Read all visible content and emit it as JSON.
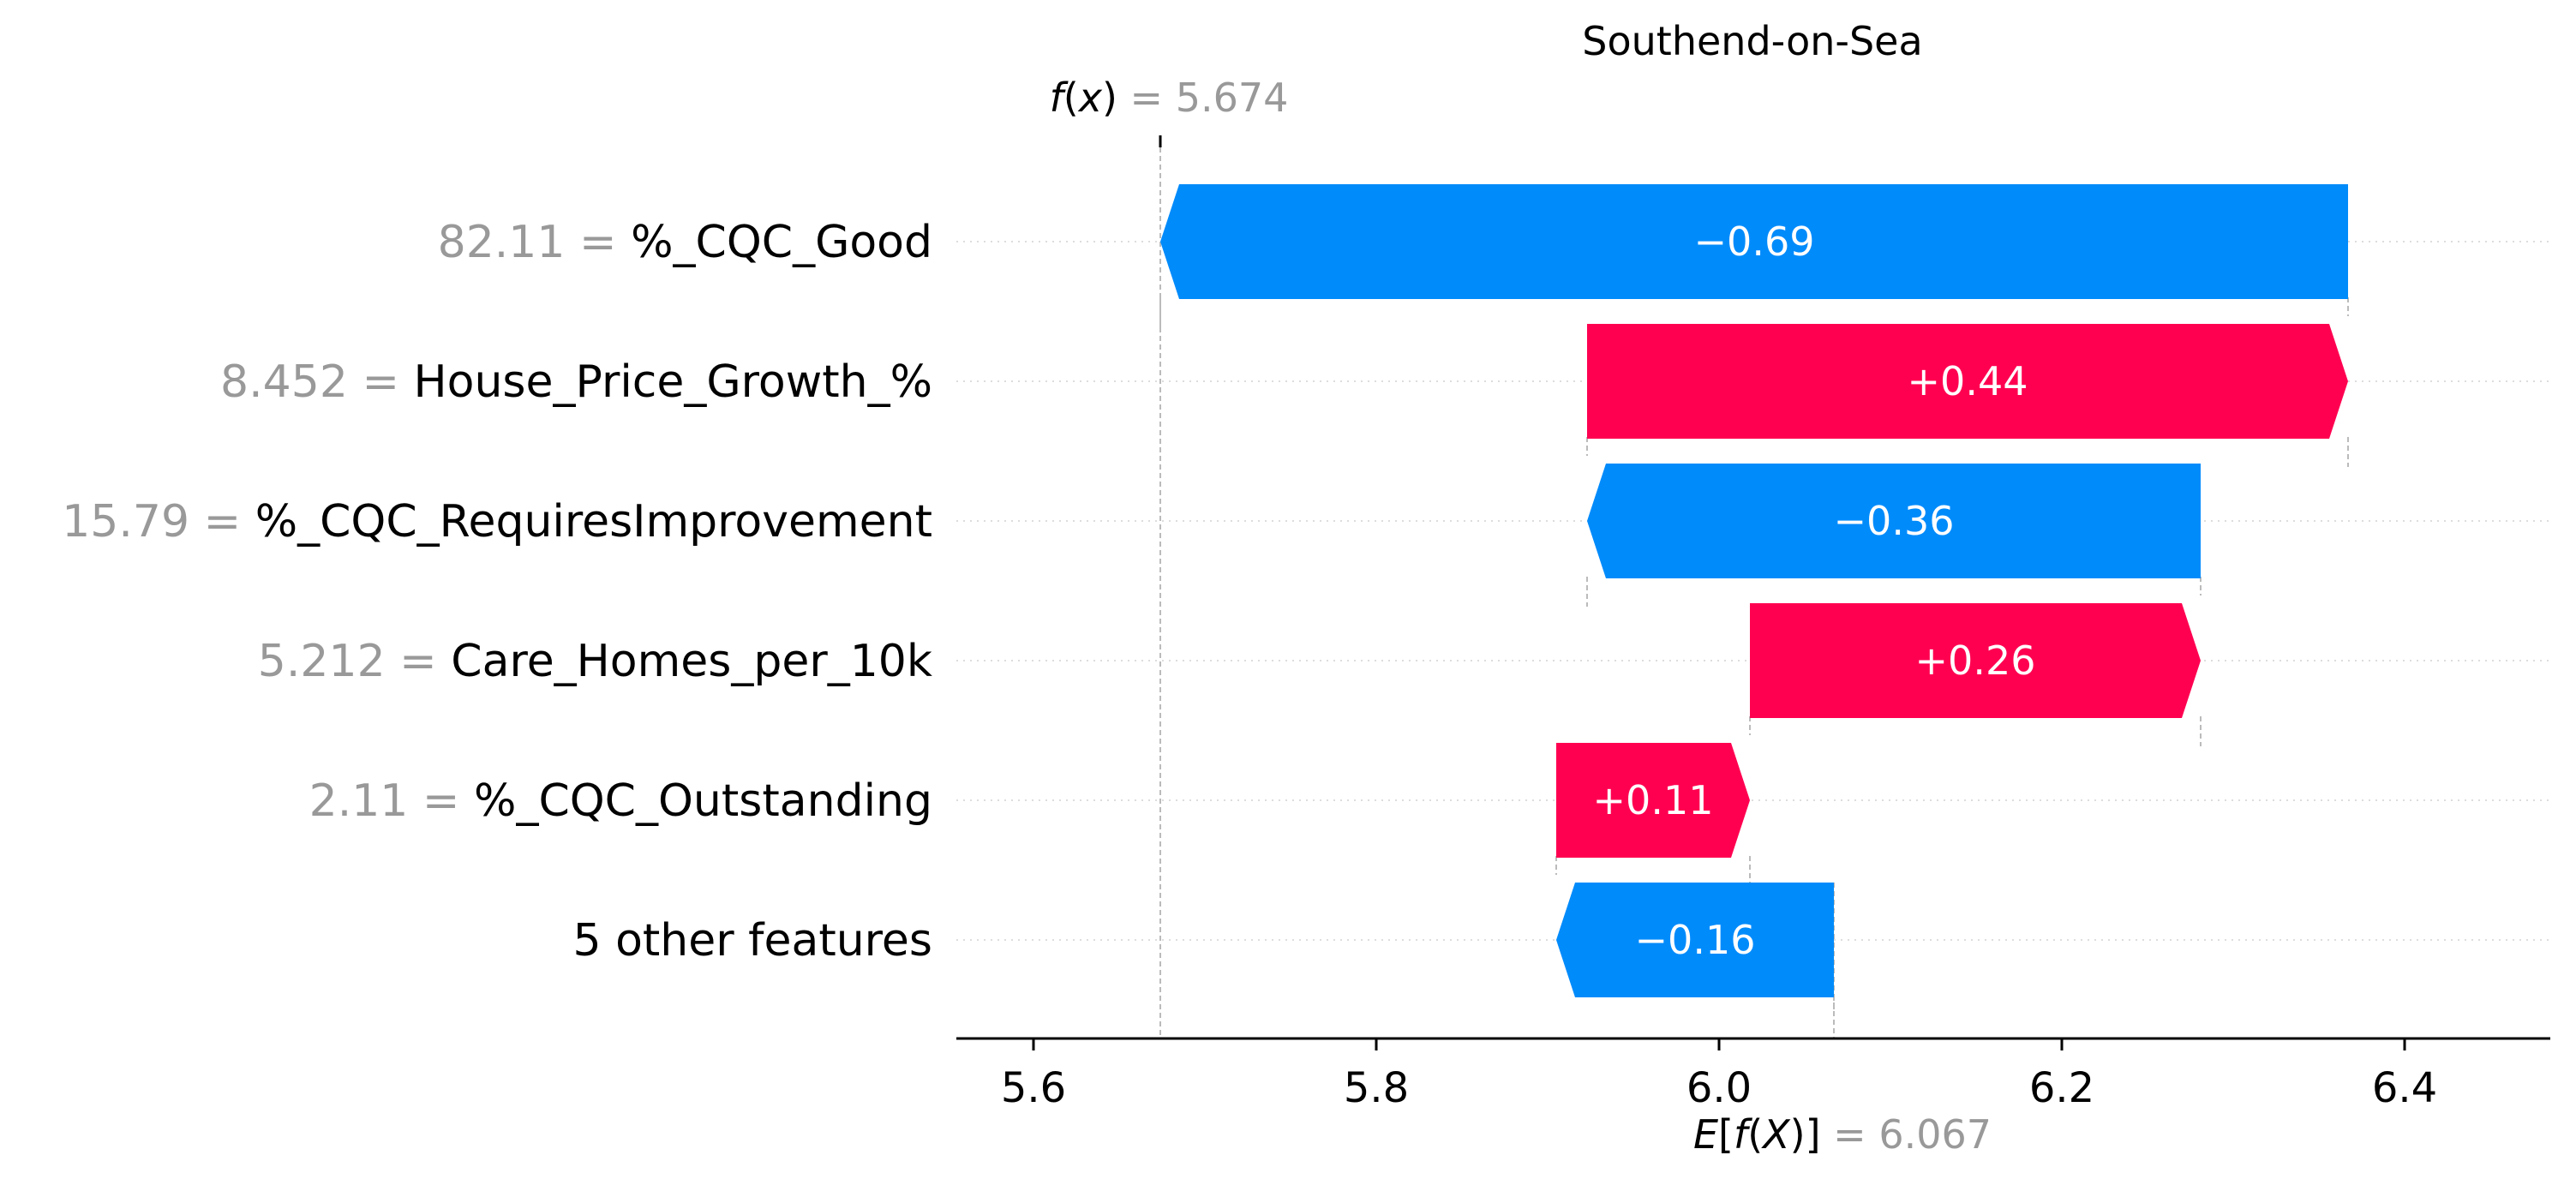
{
  "chart_data": {
    "type": "bar",
    "subtype": "shap-waterfall",
    "title": "Southend-on-Sea",
    "fx_label": {
      "fn": "f",
      "arg": "x",
      "eq": " = 5.674"
    },
    "ex_label": {
      "fn": "E",
      "inner_fn": "f",
      "arg": "X",
      "eq": " = 6.067"
    },
    "fx_value": 5.674,
    "base_value": 6.067,
    "xlim": [
      5.555,
      6.485
    ],
    "xticks": [
      5.6,
      5.8,
      6.0,
      6.2,
      6.4
    ],
    "xtick_labels": [
      "5.6",
      "5.8",
      "6.0",
      "6.2",
      "6.4"
    ],
    "rows": [
      {
        "value_text": "82.11",
        "sep": " = ",
        "feature": "%_CQC_Good",
        "contribution": -0.69,
        "label": "−0.69",
        "start": 6.367,
        "end": 5.674
      },
      {
        "value_text": "8.452",
        "sep": " = ",
        "feature": "House_Price_Growth_%",
        "contribution": 0.44,
        "label": "+0.44",
        "start": 5.923,
        "end": 6.367
      },
      {
        "value_text": "15.79",
        "sep": " = ",
        "feature": "%_CQC_RequiresImprovement",
        "contribution": -0.36,
        "label": "−0.36",
        "start": 6.281,
        "end": 5.923
      },
      {
        "value_text": "5.212",
        "sep": " = ",
        "feature": "Care_Homes_per_10k",
        "contribution": 0.26,
        "label": "+0.26",
        "start": 6.018,
        "end": 6.281
      },
      {
        "value_text": "2.11",
        "sep": " = ",
        "feature": "%_CQC_Outstanding",
        "contribution": 0.11,
        "label": "+0.11",
        "start": 5.905,
        "end": 6.018
      },
      {
        "value_text": "",
        "sep": "",
        "feature": "5 other features",
        "contribution": -0.16,
        "label": "−0.16",
        "start": 6.067,
        "end": 5.905
      }
    ],
    "colors": {
      "positive": "#ff0051",
      "negative": "#008bfb",
      "dim_text": "#999999",
      "grid": "#dddddd",
      "connector": "#bbbbbb"
    },
    "grid": true
  }
}
